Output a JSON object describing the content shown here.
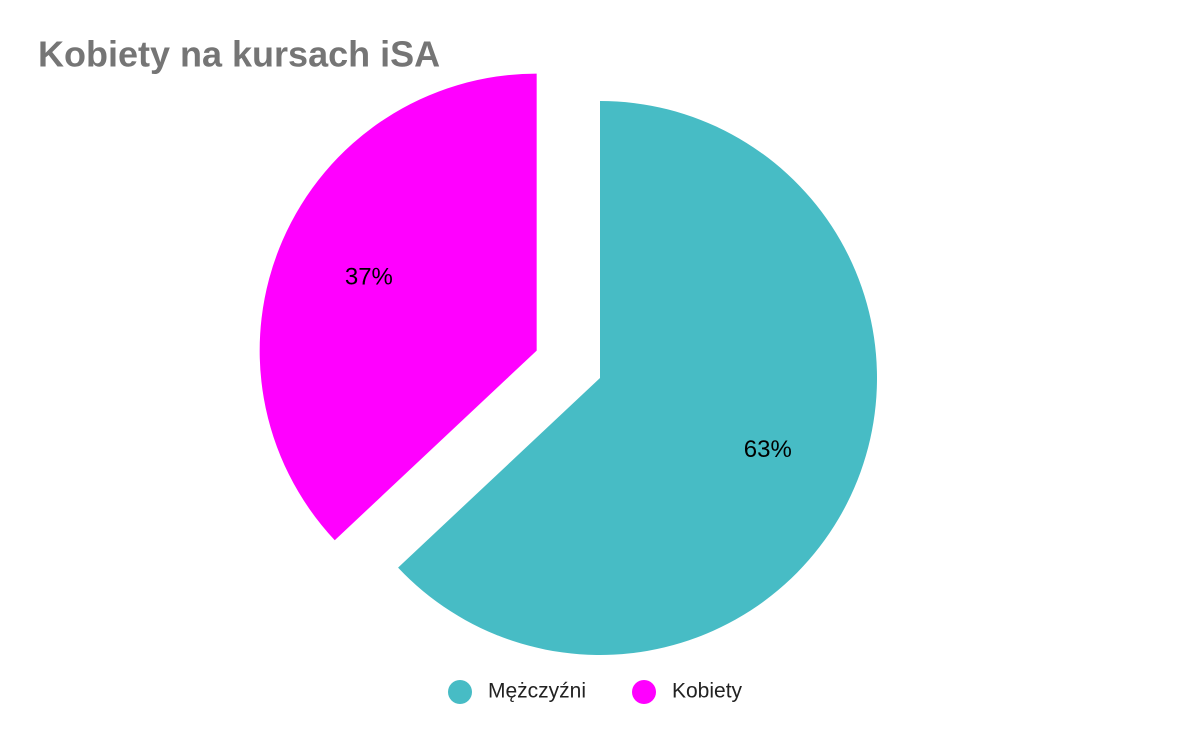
{
  "chart_data": {
    "type": "pie",
    "title": "Kobiety na kursach iSA",
    "categories": [
      "Mężczyźni",
      "Kobiety"
    ],
    "values": [
      63,
      37
    ],
    "value_labels": [
      "63%",
      "37%"
    ],
    "colors": [
      "#47bcc5",
      "#ff00ff"
    ],
    "exploded": [
      false,
      true
    ],
    "legend": "bottom"
  }
}
